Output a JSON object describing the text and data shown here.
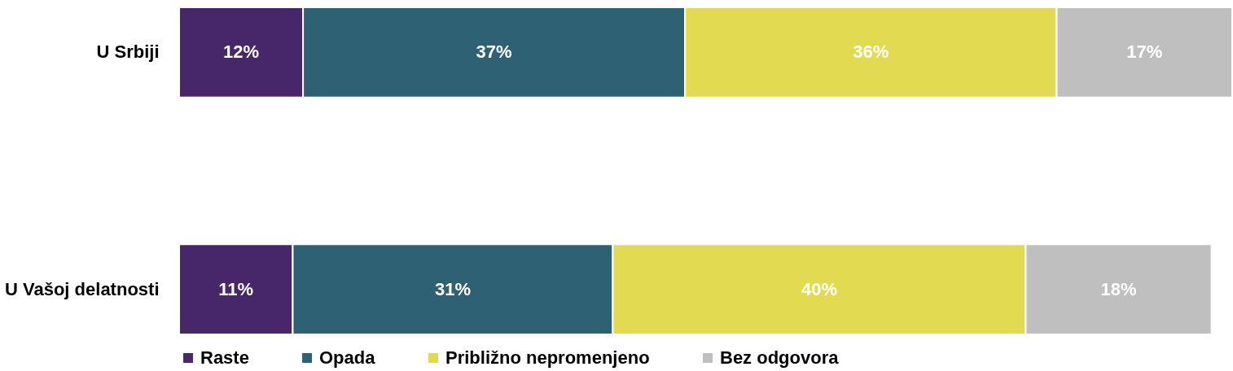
{
  "chart_data": {
    "type": "bar",
    "orientation": "horizontal",
    "stacked": true,
    "categories": [
      "U Srbiji",
      "U Vašoj delatnosti"
    ],
    "series": [
      {
        "name": "Raste",
        "color": "#48266a",
        "values": [
          12,
          11
        ],
        "value_labels": [
          "12%",
          "11%"
        ]
      },
      {
        "name": "Opada",
        "color": "#2d6173",
        "values": [
          37,
          31
        ],
        "value_labels": [
          "37%",
          "31%"
        ]
      },
      {
        "name": "Približno nepromenjeno",
        "color": "#e2da50",
        "values": [
          36,
          40
        ],
        "value_labels": [
          "36%",
          "40%"
        ]
      },
      {
        "name": "Bez odgovora",
        "color": "#bfbfbf",
        "values": [
          17,
          18
        ],
        "value_labels": [
          "17%",
          "18%"
        ]
      }
    ],
    "legend": "bottom"
  }
}
